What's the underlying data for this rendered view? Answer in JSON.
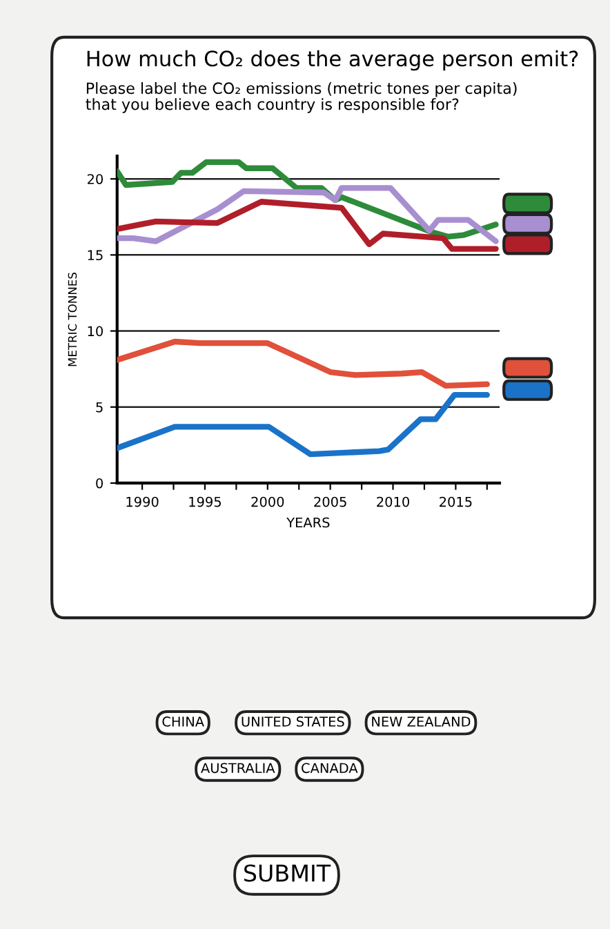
{
  "chart_data": {
    "type": "line",
    "title": "How much CO₂ does the average person emit?",
    "subtitle": "Please label the CO₂ emissions (metric tones per capita)\nthat you believe each country is responsible for?",
    "xlabel": "YEARS",
    "ylabel": "METRIC TONNES",
    "series": [
      {
        "color": "#2e8b3a",
        "x": [
          1988,
          1988.7,
          1992.4,
          1993.1,
          1994,
          1995.1,
          1997.7,
          1998.3,
          2000.4,
          2002.3,
          2004.3,
          2005.4,
          2005.9,
          2013.1,
          2014.4,
          2015.6,
          2018.2
        ],
        "values": [
          20.5,
          19.6,
          19.8,
          20.4,
          20.4,
          21.1,
          21.1,
          20.7,
          20.7,
          19.4,
          19.4,
          18.6,
          18.8,
          16.5,
          16.2,
          16.3,
          17.0
        ]
      },
      {
        "color": "#a88fd0",
        "x": [
          1988,
          1989.3,
          1991.1,
          1996,
          1998.1,
          2004.5,
          2005.4,
          2005.9,
          2009.8,
          2012.9,
          2013.6,
          2016,
          2018.2
        ],
        "values": [
          16.1,
          16.1,
          15.9,
          18.0,
          19.2,
          19.1,
          18.6,
          19.4,
          19.4,
          16.6,
          17.3,
          17.3,
          15.9
        ]
      },
      {
        "color": "#b01e2a",
        "x": [
          1988,
          1989.8,
          1991.1,
          1996,
          1999.5,
          2005.9,
          2008.1,
          2009.2,
          2014,
          2014.7,
          2018.2
        ],
        "values": [
          16.7,
          17.0,
          17.2,
          17.1,
          18.5,
          18.1,
          15.7,
          16.4,
          16.1,
          15.4,
          15.4
        ]
      },
      {
        "color": "#e0503a",
        "x": [
          1988,
          1992.6,
          1994.6,
          2000,
          2005,
          2007,
          2010.7,
          2012.3,
          2014.2,
          2017.5
        ],
        "values": [
          8.1,
          9.3,
          9.2,
          9.2,
          7.3,
          7.1,
          7.2,
          7.3,
          6.4,
          6.5
        ]
      },
      {
        "color": "#1a73c8",
        "x": [
          1988,
          1992.6,
          2000.1,
          2003.4,
          2008.9,
          2009.6,
          2012.2,
          2013.4,
          2014.9,
          2017.5
        ],
        "values": [
          2.3,
          3.7,
          3.7,
          1.9,
          2.1,
          2.2,
          4.2,
          4.2,
          5.8,
          5.8
        ]
      }
    ],
    "xlim": [
      1988,
      2018.5
    ],
    "ylim": [
      0,
      21.5
    ],
    "xticks": [
      1990,
      {
        "value": 1992.5,
        "label": null
      },
      1995,
      {
        "value": 1997.5,
        "label": null
      },
      2000,
      {
        "value": 2002.5,
        "label": null
      },
      2005,
      {
        "value": 2007.5,
        "label": null
      },
      2010,
      {
        "value": 2012.5,
        "label": null
      },
      2015,
      {
        "value": 2017.5,
        "label": null
      }
    ],
    "yticks": [
      0,
      5,
      10,
      15,
      20
    ],
    "grid": "y",
    "line_style": "solid",
    "marker": "none",
    "annotations": [
      "CHINA",
      "UNITED STATES",
      "NEW ZEALAND",
      "AUSTRALIA",
      "CANADA",
      "SUBMIT"
    ]
  }
}
